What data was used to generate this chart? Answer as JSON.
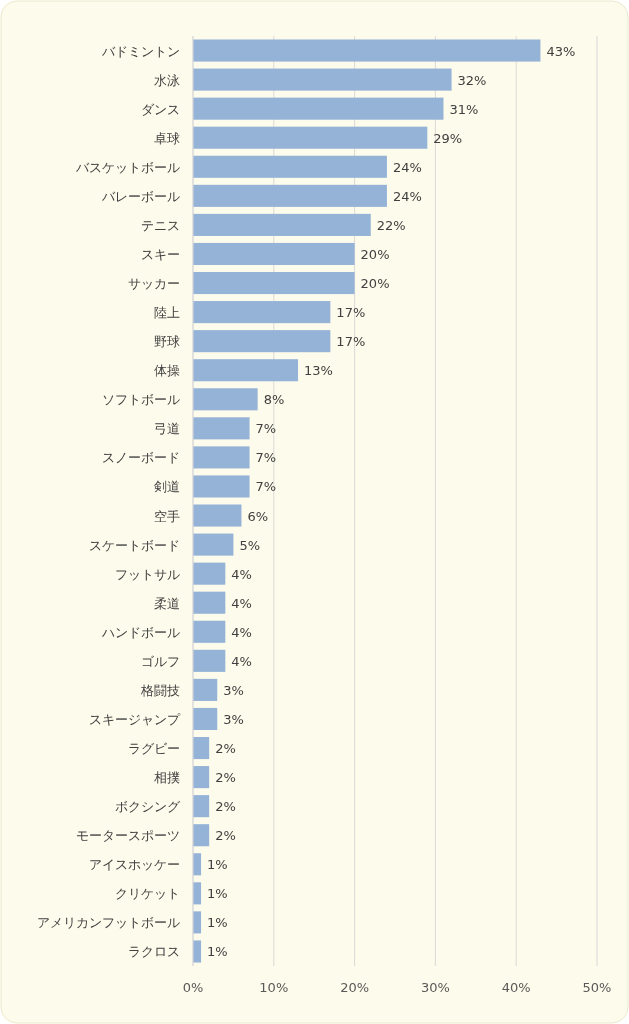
{
  "chart_data": {
    "type": "bar",
    "orientation": "horizontal",
    "categories": [
      "バドミントン",
      "水泳",
      "ダンス",
      "卓球",
      "バスケットボール",
      "バレーボール",
      "テニス",
      "スキー",
      "サッカー",
      "陸上",
      "野球",
      "体操",
      "ソフトボール",
      "弓道",
      "スノーボード",
      "剣道",
      "空手",
      "スケートボード",
      "フットサル",
      "柔道",
      "ハンドボール",
      "ゴルフ",
      "格闘技",
      "スキージャンプ",
      "ラグビー",
      "相撲",
      "ボクシング",
      "モータースポーツ",
      "アイスホッケー",
      "クリケット",
      "アメリカンフットボール",
      "ラクロス"
    ],
    "values": [
      43,
      32,
      31,
      29,
      24,
      24,
      22,
      20,
      20,
      17,
      17,
      13,
      8,
      7,
      7,
      7,
      6,
      5,
      4,
      4,
      4,
      4,
      3,
      3,
      2,
      2,
      2,
      2,
      1,
      1,
      1,
      1
    ],
    "value_labels": [
      "43%",
      "32%",
      "31%",
      "29%",
      "24%",
      "24%",
      "22%",
      "20%",
      "20%",
      "17%",
      "17%",
      "13%",
      "8%",
      "7%",
      "7%",
      "7%",
      "6%",
      "5%",
      "4%",
      "4%",
      "4%",
      "4%",
      "3%",
      "3%",
      "2%",
      "2%",
      "2%",
      "2%",
      "1%",
      "1%",
      "1%",
      "1%"
    ],
    "color": "#95b3d7",
    "xlim": [
      0,
      50
    ],
    "xticks": [
      {
        "value": 0,
        "label": "0%"
      },
      {
        "value": 10,
        "label": "10%"
      },
      {
        "value": 20,
        "label": "20%"
      },
      {
        "value": 30,
        "label": "30%"
      },
      {
        "value": 40,
        "label": "40%"
      },
      {
        "value": 50,
        "label": "50%"
      }
    ],
    "grid": "x"
  }
}
